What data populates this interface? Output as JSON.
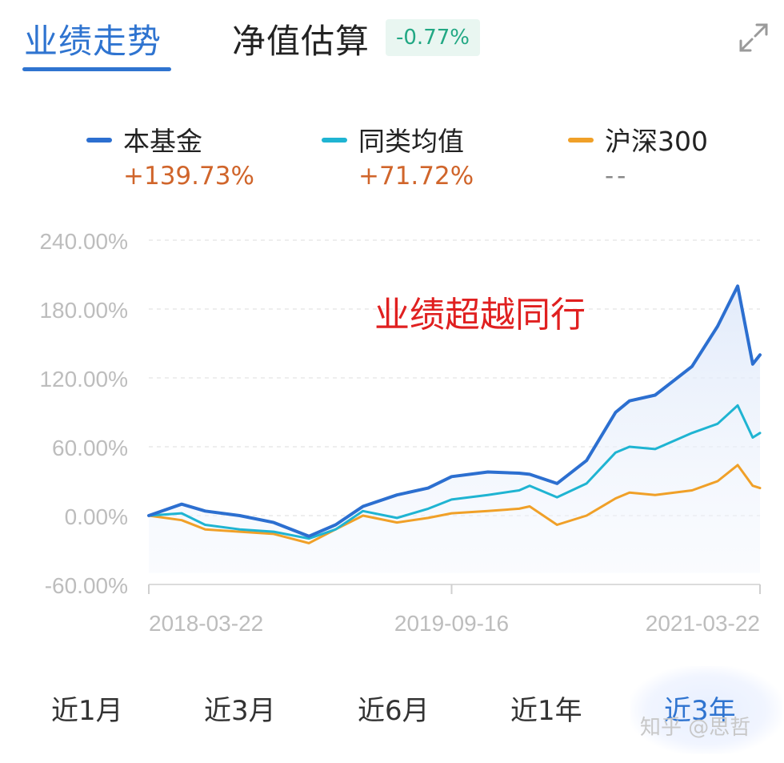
{
  "tabs": {
    "active": "业绩走势",
    "second": "净值估算",
    "estimate_badge": "-0.77%"
  },
  "legend": [
    {
      "name": "本基金",
      "value": "+139.73%",
      "color": "#2c6fd0"
    },
    {
      "name": "同类均值",
      "value": "+71.72%",
      "color": "#1fb4d2"
    },
    {
      "name": "沪深300",
      "value": "--",
      "color": "#f0a028"
    }
  ],
  "chart_data": {
    "type": "line",
    "annotation": "业绩超越同行",
    "y_ticks": [
      "240.00%",
      "180.00%",
      "120.00%",
      "60.00%",
      "0.00%",
      "-60.00%"
    ],
    "ylim": [
      -60,
      240
    ],
    "x_ticks": [
      "2018-03-22",
      "2019-09-16",
      "2021-03-22"
    ],
    "x": [
      "2018-03-22",
      "2018-05-20",
      "2018-07-01",
      "2018-09-01",
      "2018-11-01",
      "2019-01-03",
      "2019-02-20",
      "2019-04-10",
      "2019-06-10",
      "2019-08-05",
      "2019-09-16",
      "2019-11-20",
      "2020-01-15",
      "2020-02-03",
      "2020-03-23",
      "2020-05-15",
      "2020-07-06",
      "2020-07-31",
      "2020-09-15",
      "2020-11-20",
      "2021-01-05",
      "2021-02-10",
      "2021-03-09",
      "2021-03-22"
    ],
    "series": [
      {
        "name": "本基金",
        "values": [
          0,
          10,
          4,
          0,
          -6,
          -18,
          -8,
          8,
          18,
          24,
          34,
          38,
          37,
          36,
          28,
          48,
          90,
          100,
          105,
          130,
          165,
          200,
          132,
          140
        ]
      },
      {
        "name": "同类均值",
        "values": [
          0,
          2,
          -8,
          -12,
          -14,
          -20,
          -12,
          4,
          -2,
          6,
          14,
          18,
          22,
          26,
          16,
          28,
          55,
          60,
          58,
          72,
          80,
          96,
          68,
          72
        ]
      },
      {
        "name": "沪深300",
        "values": [
          0,
          -4,
          -12,
          -14,
          -16,
          -24,
          -12,
          0,
          -6,
          -2,
          2,
          4,
          6,
          8,
          -8,
          0,
          15,
          20,
          18,
          22,
          30,
          44,
          26,
          24
        ]
      }
    ]
  },
  "ranges": [
    "近1月",
    "近3月",
    "近6月",
    "近1年",
    "近3年"
  ],
  "watermark": "知乎 @思哲"
}
